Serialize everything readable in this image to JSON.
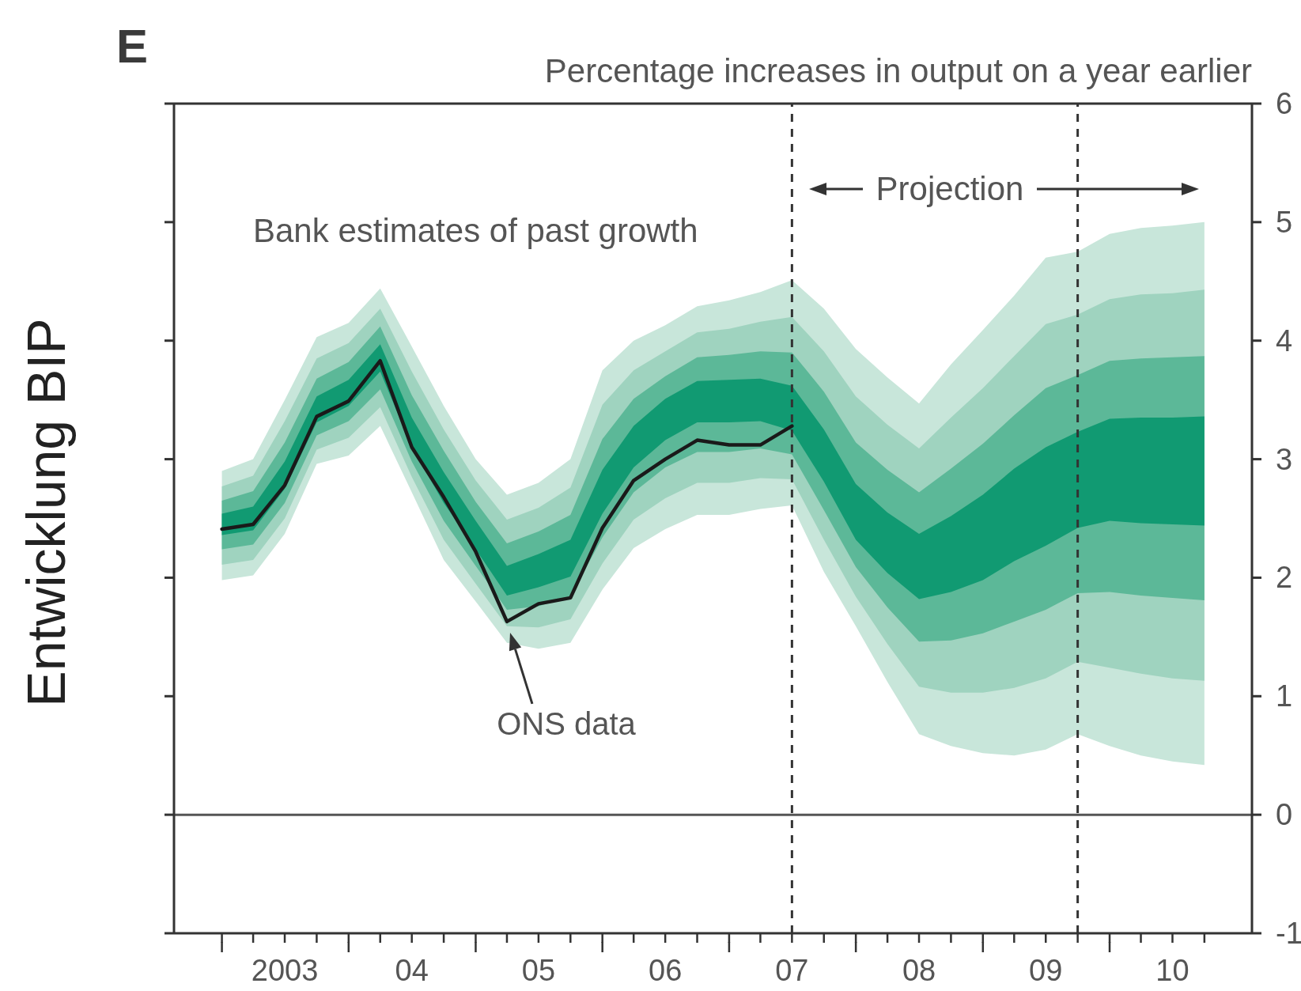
{
  "chart_data": {
    "type": "area",
    "title": "E",
    "subtitle": "Percentage increases in output on a year earlier",
    "ylabel": "Entwicklung BIP",
    "annotations": [
      "Bank estimates of past growth",
      "Projection",
      {
        "text": "ONS data",
        "x": "2005-04",
        "y": 1.63
      }
    ],
    "x": [
      "2003-01",
      "2003-04",
      "2003-07",
      "2003-10",
      "2004-01",
      "2004-04",
      "2004-07",
      "2004-10",
      "2005-01",
      "2005-04",
      "2005-07",
      "2005-10",
      "2006-01",
      "2006-04",
      "2006-07",
      "2006-10",
      "2007-01",
      "2007-04",
      "2007-07",
      "2007-10",
      "2008-01",
      "2008-04",
      "2008-07",
      "2008-10",
      "2009-01",
      "2009-04",
      "2009-07",
      "2009-10",
      "2010-01",
      "2010-04",
      "2010-07",
      "2010-10"
    ],
    "series": [
      {
        "color": "#c8e6da",
        "values": [
          null,
          null,
          null,
          null,
          null,
          null,
          null,
          null,
          null,
          null,
          null,
          null,
          null,
          null,
          null,
          null,
          null,
          null,
          null,
          null,
          null,
          null,
          null,
          null,
          null,
          null,
          null,
          null,
          null,
          null,
          null,
          null
        ],
        "lower": [
          1.98,
          2.02,
          2.37,
          2.96,
          3.03,
          3.28,
          2.72,
          2.15,
          1.8,
          1.45,
          1.4,
          1.45,
          1.9,
          2.25,
          2.41,
          2.53,
          2.53,
          2.58,
          2.61,
          2.05,
          1.59,
          1.12,
          0.68,
          0.58,
          0.52,
          0.5,
          0.55,
          0.68,
          0.58,
          0.5,
          0.45,
          0.42
        ],
        "upper": [
          2.9,
          3.0,
          3.5,
          4.03,
          4.15,
          4.44,
          3.95,
          3.45,
          3.0,
          2.7,
          2.8,
          3.0,
          3.75,
          4.0,
          4.13,
          4.29,
          4.34,
          4.41,
          4.51,
          4.27,
          3.93,
          3.69,
          3.47,
          3.8,
          4.09,
          4.38,
          4.7,
          4.75,
          4.9,
          4.95,
          4.97,
          5.0
        ]
      },
      {
        "color": "#9fd3bf",
        "values": [
          null,
          null,
          null,
          null,
          null,
          null,
          null,
          null,
          null,
          null,
          null,
          null,
          null,
          null,
          null,
          null,
          null,
          null,
          null,
          null,
          null,
          null,
          null,
          null,
          null,
          null,
          null,
          null,
          null,
          null,
          null,
          null
        ],
        "lower": [
          2.11,
          2.15,
          2.5,
          3.08,
          3.18,
          3.44,
          2.85,
          2.32,
          1.95,
          1.59,
          1.58,
          1.65,
          2.12,
          2.49,
          2.67,
          2.8,
          2.8,
          2.84,
          2.83,
          2.32,
          1.84,
          1.44,
          1.08,
          1.03,
          1.03,
          1.07,
          1.15,
          1.29,
          1.24,
          1.19,
          1.15,
          1.13
        ],
        "upper": [
          2.77,
          2.86,
          3.32,
          3.85,
          3.98,
          4.27,
          3.74,
          3.25,
          2.82,
          2.49,
          2.59,
          2.76,
          3.46,
          3.75,
          3.91,
          4.07,
          4.1,
          4.16,
          4.2,
          3.91,
          3.53,
          3.29,
          3.09,
          3.35,
          3.6,
          3.87,
          4.14,
          4.22,
          4.35,
          4.39,
          4.4,
          4.43
        ]
      },
      {
        "color": "#5cb898",
        "values": [
          null,
          null,
          null,
          null,
          null,
          null,
          null,
          null,
          null,
          null,
          null,
          null,
          null,
          null,
          null,
          null,
          null,
          null,
          null,
          null,
          null,
          null,
          null,
          null,
          null,
          null,
          null,
          null,
          null,
          null,
          null,
          null
        ],
        "lower": [
          2.24,
          2.28,
          2.63,
          3.2,
          3.32,
          3.59,
          2.98,
          2.48,
          2.1,
          1.73,
          1.76,
          1.84,
          2.34,
          2.72,
          2.93,
          3.06,
          3.06,
          3.09,
          3.04,
          2.57,
          2.09,
          1.75,
          1.46,
          1.47,
          1.53,
          1.63,
          1.73,
          1.87,
          1.88,
          1.85,
          1.83,
          1.81
        ],
        "upper": [
          2.65,
          2.73,
          3.14,
          3.68,
          3.82,
          4.12,
          3.54,
          3.07,
          2.64,
          2.29,
          2.39,
          2.53,
          3.17,
          3.51,
          3.7,
          3.86,
          3.88,
          3.91,
          3.9,
          3.57,
          3.14,
          2.91,
          2.72,
          2.92,
          3.13,
          3.37,
          3.6,
          3.71,
          3.83,
          3.85,
          3.86,
          3.87
        ]
      },
      {
        "color": "#119a72",
        "values": [
          null,
          null,
          null,
          null,
          null,
          null,
          null,
          null,
          null,
          null,
          null,
          null,
          null,
          null,
          null,
          null,
          null,
          null,
          null,
          null,
          null,
          null,
          null,
          null,
          null,
          null,
          null,
          null,
          null,
          null,
          null,
          null
        ],
        "lower": [
          2.36,
          2.4,
          2.75,
          3.31,
          3.45,
          3.74,
          3.1,
          2.63,
          2.24,
          1.85,
          1.92,
          2.01,
          2.54,
          2.93,
          3.16,
          3.31,
          3.31,
          3.32,
          3.24,
          2.81,
          2.32,
          2.04,
          1.82,
          1.88,
          1.98,
          2.14,
          2.27,
          2.42,
          2.48,
          2.46,
          2.45,
          2.44
        ],
        "upper": [
          2.54,
          2.6,
          2.98,
          3.53,
          3.67,
          3.97,
          3.35,
          2.89,
          2.48,
          2.1,
          2.2,
          2.32,
          2.91,
          3.28,
          3.51,
          3.66,
          3.67,
          3.68,
          3.62,
          3.25,
          2.79,
          2.55,
          2.37,
          2.52,
          2.7,
          2.92,
          3.1,
          3.23,
          3.34,
          3.35,
          3.35,
          3.36
        ]
      },
      {
        "type": "line",
        "color": "#1a1a1a",
        "x": [
          "2003-01",
          "2003-04",
          "2003-07",
          "2003-10",
          "2004-01",
          "2004-04",
          "2004-07",
          "2004-10",
          "2005-01",
          "2005-04",
          "2005-07",
          "2005-10",
          "2006-01",
          "2006-04",
          "2006-07",
          "2006-10",
          "2007-01",
          "2007-04",
          "2007-07"
        ],
        "values": [
          2.41,
          2.45,
          2.78,
          3.36,
          3.49,
          3.83,
          3.1,
          2.68,
          2.22,
          1.63,
          1.78,
          1.83,
          2.42,
          2.82,
          3.0,
          3.16,
          3.12,
          3.12,
          3.28
        ]
      }
    ],
    "xlim": [
      "2002-08-16",
      "2011-02-15"
    ],
    "xticks": [
      {
        "value": "2003-01",
        "label": null
      },
      {
        "value": "2003-04",
        "label": null
      },
      {
        "value": "2003-07",
        "label": "2003"
      },
      {
        "value": "2003-10",
        "label": null
      },
      {
        "value": "2004-01",
        "label": null
      },
      {
        "value": "2004-04",
        "label": null
      },
      {
        "value": "2004-07",
        "label": "04"
      },
      {
        "value": "2004-10",
        "label": null
      },
      {
        "value": "2005-01",
        "label": null
      },
      {
        "value": "2005-04",
        "label": null
      },
      {
        "value": "2005-07",
        "label": "05"
      },
      {
        "value": "2005-10",
        "label": null
      },
      {
        "value": "2006-01",
        "label": null
      },
      {
        "value": "2006-04",
        "label": null
      },
      {
        "value": "2006-07",
        "label": "06"
      },
      {
        "value": "2006-10",
        "label": null
      },
      {
        "value": "2007-01",
        "label": null
      },
      {
        "value": "2007-04",
        "label": null
      },
      {
        "value": "2007-07",
        "label": "07"
      },
      {
        "value": "2007-10",
        "label": null
      },
      {
        "value": "2008-01",
        "label": null
      },
      {
        "value": "2008-04",
        "label": null
      },
      {
        "value": "2008-07",
        "label": "08"
      },
      {
        "value": "2008-10",
        "label": null
      },
      {
        "value": "2009-01",
        "label": null
      },
      {
        "value": "2009-04",
        "label": null
      },
      {
        "value": "2009-07",
        "label": "09"
      },
      {
        "value": "2009-10",
        "label": null
      },
      {
        "value": "2010-01",
        "label": null
      },
      {
        "value": "2010-04",
        "label": null
      },
      {
        "value": "2010-07",
        "label": "10"
      },
      {
        "value": "2010-10",
        "label": null
      }
    ],
    "ylim": [
      -1,
      6
    ],
    "yticks": [
      -1,
      0,
      1,
      2,
      3,
      4,
      5,
      6
    ],
    "ref_lines": [
      {
        "axis": "x",
        "value": "2007-07",
        "line_style": "dashed",
        "color": "#333333"
      },
      {
        "axis": "x",
        "value": "2009-10",
        "line_style": "dashed",
        "color": "#333333"
      },
      {
        "axis": "y",
        "value": 0,
        "color": "#555555"
      }
    ]
  }
}
